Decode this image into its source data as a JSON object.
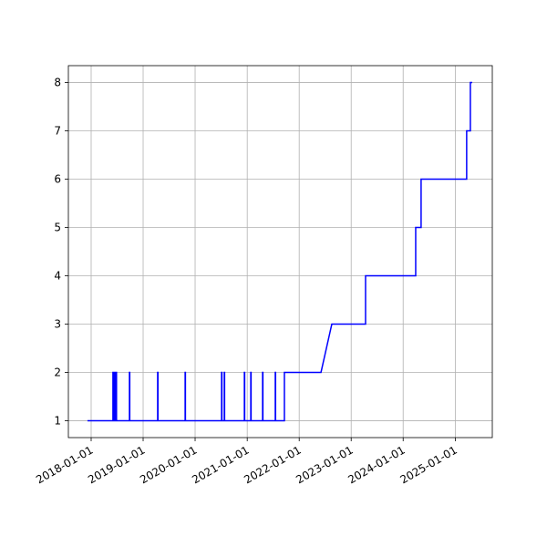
{
  "chart_data": {
    "type": "line",
    "x": [
      "2017-12-06",
      "2018-06-03",
      "2018-06-03",
      "2018-06-08",
      "2018-06-08",
      "2018-06-12",
      "2018-06-12",
      "2018-06-18",
      "2018-06-18",
      "2018-06-22",
      "2018-06-22",
      "2018-06-28",
      "2018-06-28",
      "2018-09-27",
      "2018-09-27",
      "2018-09-29",
      "2018-09-29",
      "2019-04-13",
      "2019-04-13",
      "2019-04-15",
      "2019-04-15",
      "2019-10-23",
      "2019-10-23",
      "2019-10-25",
      "2019-10-25",
      "2020-07-05",
      "2020-07-05",
      "2020-07-07",
      "2020-07-07",
      "2020-07-24",
      "2020-07-24",
      "2020-07-26",
      "2020-07-26",
      "2020-12-12",
      "2020-12-12",
      "2020-12-14",
      "2020-12-14",
      "2021-01-26",
      "2021-01-26",
      "2021-01-28",
      "2021-01-28",
      "2021-04-19",
      "2021-04-19",
      "2021-04-21",
      "2021-04-21",
      "2021-07-17",
      "2021-07-17",
      "2021-07-19",
      "2021-07-19",
      "2021-09-19",
      "2021-09-19",
      "2022-06-03",
      "2022-08-18",
      "2023-04-12",
      "2023-04-12",
      "2024-03-29",
      "2024-03-29",
      "2024-05-06",
      "2024-05-06",
      "2025-03-22",
      "2025-03-22",
      "2025-04-17",
      "2025-04-17",
      "2025-04-30"
    ],
    "series": [
      {
        "color": "#0000ff",
        "values": [
          1,
          1,
          2,
          2,
          1,
          1,
          2,
          2,
          1,
          1,
          2,
          2,
          1,
          1,
          2,
          2,
          1,
          1,
          2,
          2,
          1,
          1,
          2,
          2,
          1,
          1,
          2,
          2,
          1,
          1,
          2,
          2,
          1,
          1,
          2,
          2,
          1,
          1,
          2,
          2,
          1,
          1,
          2,
          2,
          1,
          1,
          2,
          2,
          1,
          1,
          2,
          2,
          3,
          3,
          4,
          4,
          5,
          5,
          6,
          6,
          7,
          7,
          8,
          8
        ]
      }
    ],
    "xlim": [
      "2017-07-25",
      "2025-09-18"
    ],
    "xticks": [
      "2018-01-01",
      "2019-01-01",
      "2020-01-01",
      "2021-01-01",
      "2022-01-01",
      "2023-01-01",
      "2024-01-01",
      "2025-01-01"
    ],
    "ylim": [
      0.65,
      8.35
    ],
    "yticks": [
      1,
      2,
      3,
      4,
      5,
      6,
      7,
      8
    ],
    "grid": true
  }
}
